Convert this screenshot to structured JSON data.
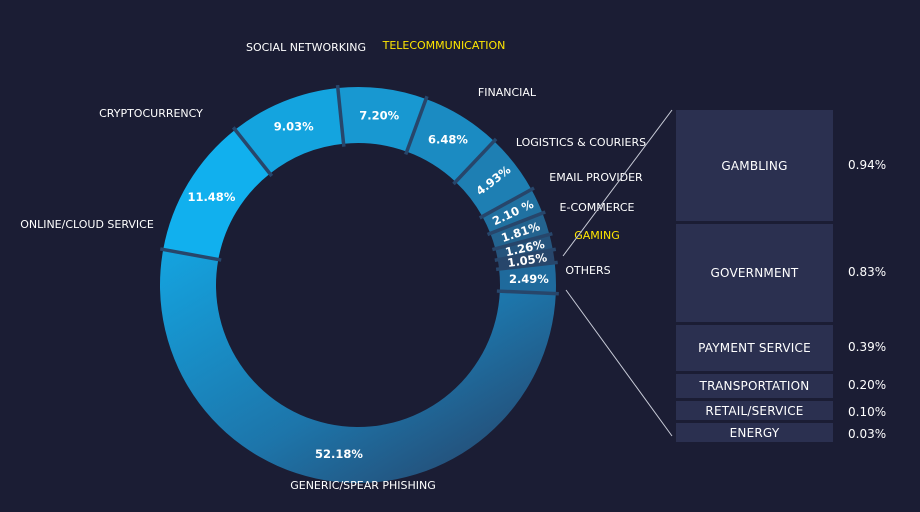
{
  "chart_data": [
    {
      "type": "pie",
      "donut": true,
      "categories": [
        "GENERIC/SPEAR PHISHING",
        "ONLINE/CLOUD SERVICE",
        "CRYPTOCURRENCY",
        "SOCIAL NETWORKING",
        "TELECOMMUNICATION",
        "FINANCIAL",
        "LOGISTICS & COURIERS",
        "EMAIL PROVIDER",
        "E-COMMERCE",
        "GAMING",
        "OTHERS"
      ],
      "values": [
        52.18,
        11.48,
        9.03,
        7.2,
        6.48,
        4.93,
        2.1,
        1.81,
        1.26,
        1.05,
        2.49
      ],
      "value_labels": [
        "52.18%",
        "11.48%",
        "9.03%",
        "7.20%",
        "6.48%",
        "4.93%",
        "2.10 %",
        "1.81%",
        "1.26%",
        "1.05%",
        "2.49%"
      ],
      "highlighted": [
        "TELECOMMUNICATION",
        "GAMING"
      ],
      "colors": {
        "light": "#11b0ee",
        "mid": "#1e7fb3",
        "dark": "#27466b",
        "separator": "#27466b",
        "highlight": "#ffe600"
      }
    },
    {
      "type": "bar",
      "orientation": "horizontal",
      "breakdown_of": "OTHERS",
      "categories": [
        "GAMBLING",
        "GOVERNMENT",
        "PAYMENT SERVICE",
        "TRANSPORTATION",
        "RETAIL/SERVICE",
        "ENERGY"
      ],
      "values": [
        0.94,
        0.83,
        0.39,
        0.2,
        0.1,
        0.03
      ],
      "value_labels": [
        "0.94%",
        "0.83%",
        "0.39%",
        "0.20%",
        "0.10%",
        "0.03%"
      ]
    }
  ]
}
